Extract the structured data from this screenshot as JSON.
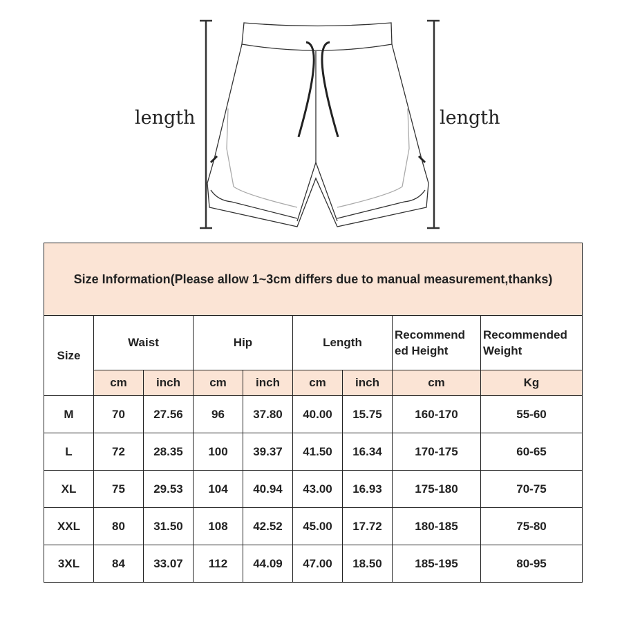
{
  "illustration": {
    "left_label": "length",
    "right_label": "length"
  },
  "table": {
    "title": "Size Information(Please allow 1~3cm differs due to manual measurement,thanks)",
    "headers": {
      "size": "Size",
      "waist": "Waist",
      "hip": "Hip",
      "length": "Length",
      "height": "Recommend ed Height",
      "weight": "Recommended Weight"
    },
    "units": [
      "cm",
      "inch",
      "cm",
      "inch",
      "cm",
      "inch",
      "cm",
      "Kg"
    ],
    "rows": [
      [
        "M",
        "70",
        "27.56",
        "96",
        "37.80",
        "40.00",
        "15.75",
        "160-170",
        "55-60"
      ],
      [
        "L",
        "72",
        "28.35",
        "100",
        "39.37",
        "41.50",
        "16.34",
        "170-175",
        "60-65"
      ],
      [
        "XL",
        "75",
        "29.53",
        "104",
        "40.94",
        "43.00",
        "16.93",
        "175-180",
        "70-75"
      ],
      [
        "XXL",
        "80",
        "31.50",
        "108",
        "42.52",
        "45.00",
        "17.72",
        "180-185",
        "75-80"
      ],
      [
        "3XL",
        "84",
        "33.07",
        "112",
        "44.09",
        "47.00",
        "18.50",
        "185-195",
        "80-95"
      ]
    ],
    "colors": {
      "header_fill": "#fbe4d5",
      "border": "#222222"
    }
  }
}
